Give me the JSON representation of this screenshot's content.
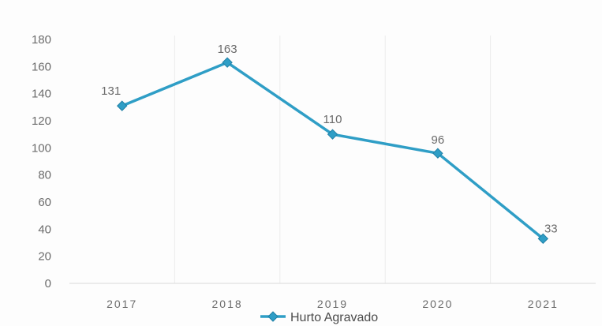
{
  "chart_data": {
    "type": "line",
    "categories": [
      "2017",
      "2018",
      "2019",
      "2020",
      "2021"
    ],
    "series": [
      {
        "name": "Hurto Agravado",
        "values": [
          131,
          163,
          110,
          96,
          33
        ]
      }
    ],
    "ylim": [
      0,
      180
    ],
    "yticks": [
      0,
      20,
      40,
      60,
      80,
      100,
      120,
      140,
      160,
      180
    ],
    "grid": "vertical",
    "legend": "bottom",
    "colors": {
      "line": "#2f9ec6",
      "marker": "#2f9ec6",
      "grid": "#ececec",
      "axis": "#d9d9d9"
    },
    "data_labels": [
      "131",
      "163",
      "110",
      "96",
      "33"
    ]
  }
}
